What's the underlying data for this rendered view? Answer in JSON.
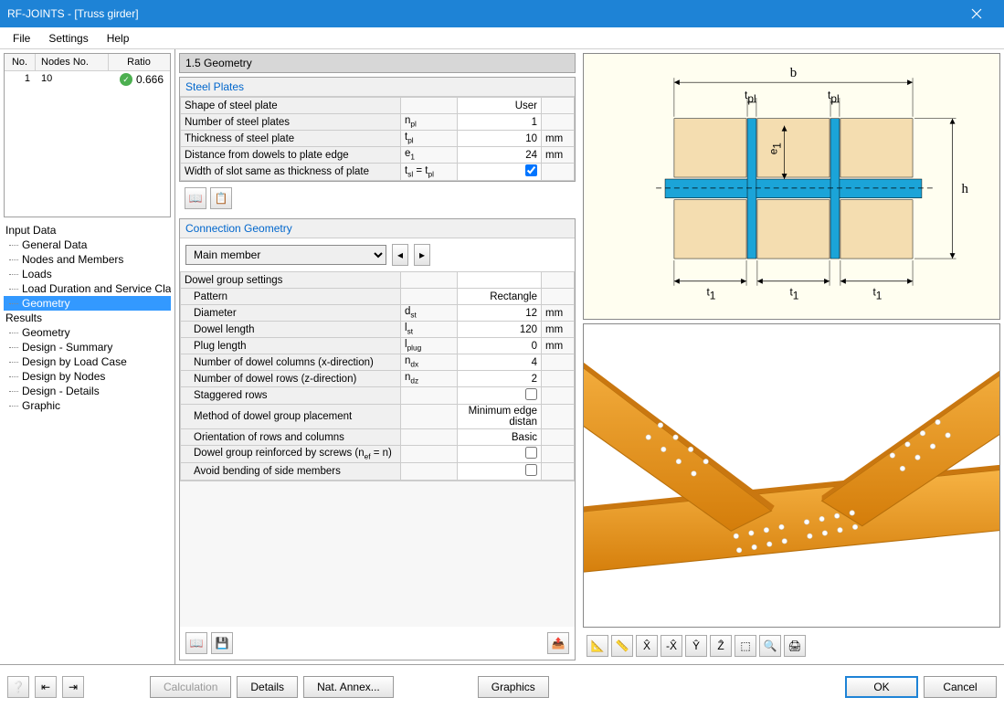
{
  "window": {
    "title": "RF-JOINTS - [Truss girder]"
  },
  "menu": {
    "file": "File",
    "settings": "Settings",
    "help": "Help"
  },
  "nodes_table": {
    "headers": {
      "no": "No.",
      "nodes_no": "Nodes No.",
      "ratio": "Ratio"
    },
    "row": {
      "no": "1",
      "nodes_no": "10",
      "ratio": "0.666"
    }
  },
  "tree": {
    "input_data": "Input Data",
    "general_data": "General Data",
    "nodes_members": "Nodes and Members",
    "loads": "Loads",
    "load_duration": "Load Duration and Service Class",
    "geometry_in": "Geometry",
    "results": "Results",
    "geometry_res": "Geometry",
    "design_summary": "Design - Summary",
    "design_load_case": "Design by Load Case",
    "design_nodes": "Design by Nodes",
    "design_details": "Design - Details",
    "graphic": "Graphic"
  },
  "section": {
    "title": "1.5 Geometry"
  },
  "steel_plates": {
    "title": "Steel Plates",
    "rows": {
      "shape": {
        "label": "Shape of steel plate",
        "value": "User"
      },
      "num_plates": {
        "label": "Number of steel plates",
        "symbol_html": "n<sub class='s'>pl</sub>",
        "value": "1"
      },
      "thickness": {
        "label": "Thickness of steel plate",
        "symbol_html": "t<sub class='s'>pl</sub>",
        "value": "10",
        "unit": "mm"
      },
      "distance_dowels": {
        "label": "Distance from dowels to plate edge",
        "symbol_html": "e<sub class='s'>1</sub>",
        "value": "24",
        "unit": "mm"
      },
      "width_slot": {
        "label": "Width of slot same as thickness of plate",
        "symbol_html": "t<sub class='s'>sl</sub> = t<sub class='s'>pl</sub>",
        "checked": true
      }
    }
  },
  "connection_geometry": {
    "title": "Connection Geometry",
    "member_select": "Main member",
    "subheader": "Dowel group settings",
    "rows": {
      "pattern": {
        "label": "Pattern",
        "value": "Rectangle"
      },
      "diameter": {
        "label": "Diameter",
        "symbol_html": "d<sub class='s'>st</sub>",
        "value": "12",
        "unit": "mm"
      },
      "dowel_length": {
        "label": "Dowel length",
        "symbol_html": "l<sub class='s'>st</sub>",
        "value": "120",
        "unit": "mm"
      },
      "plug_length": {
        "label": "Plug length",
        "symbol_html": "l<sub class='s'>plug</sub>",
        "value": "0",
        "unit": "mm"
      },
      "num_cols": {
        "label": "Number of dowel columns (x-direction)",
        "symbol_html": "n<sub class='s'>dx</sub>",
        "value": "4"
      },
      "num_rows": {
        "label": "Number of dowel rows (z-direction)",
        "symbol_html": "n<sub class='s'>dz</sub>",
        "value": "2"
      },
      "staggered": {
        "label": "Staggered rows",
        "checked": false
      },
      "method": {
        "label": "Method of dowel group placement",
        "value": "Minimum edge distan"
      },
      "orientation": {
        "label": "Orientation of rows and columns",
        "value": "Basic"
      },
      "reinforced": {
        "label_html": "Dowel group reinforced by screws (n<sub class='s'>ef</sub> = n)",
        "checked": false
      },
      "avoid_bending": {
        "label": "Avoid bending of side members",
        "checked": false
      }
    }
  },
  "diagram": {
    "colors": {
      "bg": "#fffef0",
      "wood": "#f4ddb0",
      "plate": "#1ba4d8",
      "line": "#000"
    },
    "labels": {
      "b": "b",
      "tpl": "t",
      "tpl_sub": "pl",
      "e1": "e",
      "e1_sub": "1",
      "h": "h",
      "t1": "t",
      "t1_sub": "1"
    }
  },
  "render": {
    "colors": {
      "member": "#eb9c1f",
      "member_dark": "#b76f0b",
      "dowel": "#ffffff"
    }
  },
  "footer": {
    "calculation": "Calculation",
    "details": "Details",
    "nat_annex": "Nat. Annex...",
    "graphics": "Graphics",
    "ok": "OK",
    "cancel": "Cancel"
  }
}
